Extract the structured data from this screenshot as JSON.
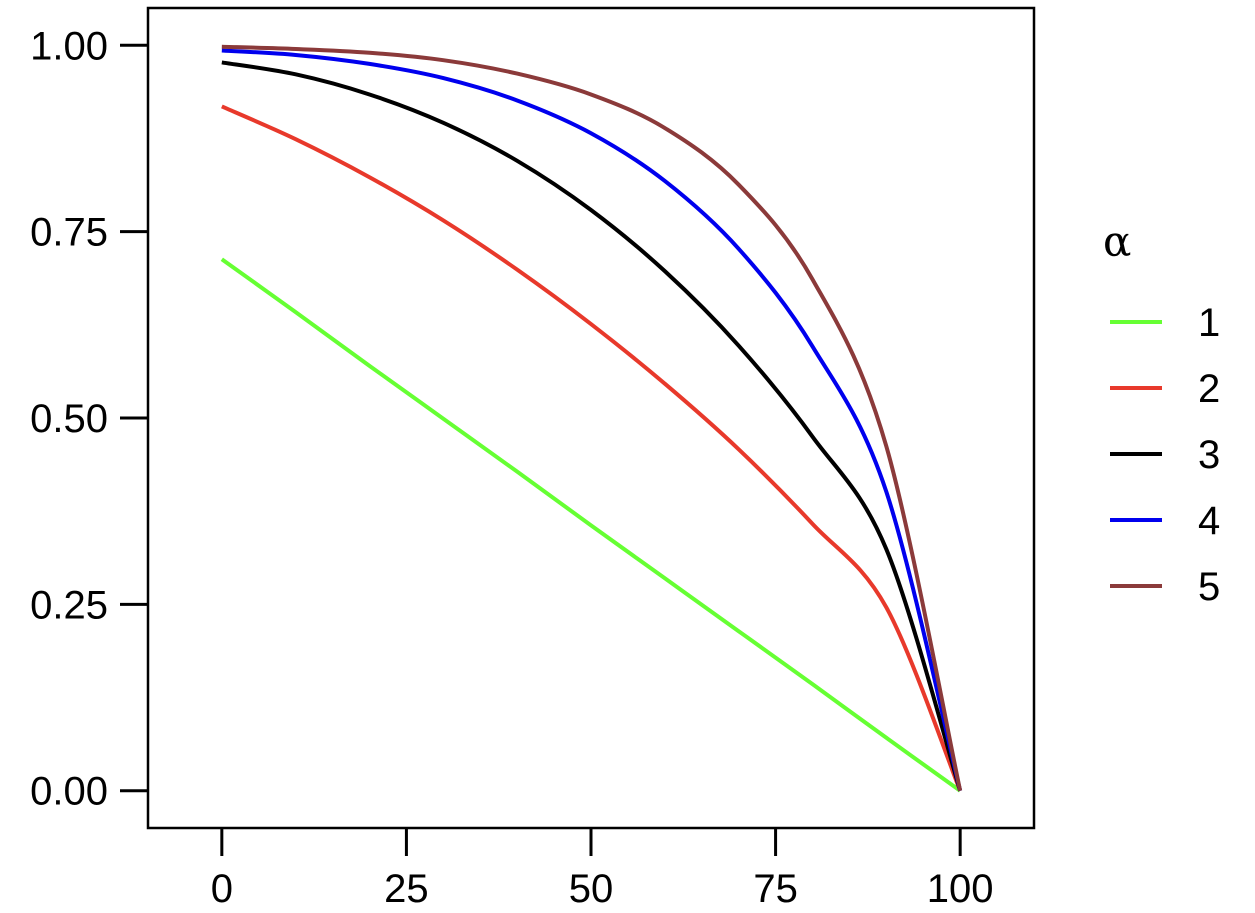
{
  "chart_data": {
    "type": "line",
    "title": "",
    "xlabel": "",
    "ylabel": "",
    "xlim": [
      -10,
      110
    ],
    "ylim": [
      -0.05,
      1.05
    ],
    "x_ticks": [
      0,
      25,
      50,
      75,
      100
    ],
    "x_tick_labels": [
      "0",
      "25",
      "50",
      "75",
      "100"
    ],
    "y_ticks": [
      0,
      0.25,
      0.5,
      0.75,
      1.0
    ],
    "y_tick_labels": [
      "0.00",
      "0.25",
      "0.50",
      "0.75",
      "1.00"
    ],
    "grid": false,
    "legend": {
      "title": "α",
      "position": "right"
    },
    "x": [
      0,
      10,
      20,
      30,
      40,
      50,
      60,
      70,
      80,
      90,
      100
    ],
    "series": [
      {
        "name": "1",
        "color": "#66ff33",
        "values": [
          0.713,
          0.642,
          0.57,
          0.499,
          0.428,
          0.356,
          0.285,
          0.214,
          0.143,
          0.071,
          0.0
        ]
      },
      {
        "name": "2",
        "color": "#e8392b",
        "values": [
          0.918,
          0.874,
          0.823,
          0.765,
          0.699,
          0.626,
          0.546,
          0.458,
          0.358,
          0.246,
          0.0
        ]
      },
      {
        "name": "3",
        "color": "#000000",
        "values": [
          0.977,
          0.961,
          0.934,
          0.896,
          0.845,
          0.779,
          0.697,
          0.597,
          0.475,
          0.324,
          0.0
        ]
      },
      {
        "name": "4",
        "color": "#0000ee",
        "values": [
          0.993,
          0.987,
          0.975,
          0.956,
          0.926,
          0.882,
          0.818,
          0.727,
          0.596,
          0.401,
          0.0
        ]
      },
      {
        "name": "5",
        "color": "#8b3a3a",
        "values": [
          0.998,
          0.995,
          0.99,
          0.98,
          0.962,
          0.934,
          0.889,
          0.813,
          0.686,
          0.462,
          0.0
        ]
      }
    ]
  }
}
